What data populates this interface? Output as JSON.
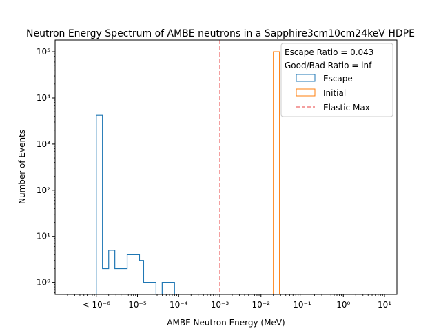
{
  "chart_data": {
    "type": "histogram",
    "title": "Neutron Energy Spectrum of AMBE neutrons in a Sapphire3cm10cm24keV HDPE",
    "xlabel": "AMBE Neutron Energy (MeV)",
    "ylabel": "Number of Events",
    "xscale": "log",
    "yscale": "log",
    "xlim": [
      1e-07,
      20
    ],
    "ylim": [
      0.55,
      180000
    ],
    "x_ticks": [
      {
        "value": 1e-06,
        "label": "< 10⁻⁶"
      },
      {
        "value": 1e-05,
        "label": "10⁻⁵"
      },
      {
        "value": 0.0001,
        "label": "10⁻⁴"
      },
      {
        "value": 0.001,
        "label": "10⁻³"
      },
      {
        "value": 0.01,
        "label": "10⁻²"
      },
      {
        "value": 0.1,
        "label": "10⁻¹"
      },
      {
        "value": 1,
        "label": "10⁰"
      },
      {
        "value": 10,
        "label": "10¹"
      }
    ],
    "y_ticks": [
      {
        "value": 1,
        "label": "10⁰"
      },
      {
        "value": 10,
        "label": "10¹"
      },
      {
        "value": 100,
        "label": "10²"
      },
      {
        "value": 1000,
        "label": "10³"
      },
      {
        "value": 10000,
        "label": "10⁴"
      },
      {
        "value": 100000,
        "label": "10⁵"
      }
    ],
    "series": [
      {
        "name": "Escape",
        "color": "#1f77b4",
        "style": "step",
        "bins": [
          {
            "lo": 1e-06,
            "hi": 1.41e-06,
            "count": 4200
          },
          {
            "lo": 1.41e-06,
            "hi": 2e-06,
            "count": 2
          },
          {
            "lo": 2e-06,
            "hi": 2.82e-06,
            "count": 5
          },
          {
            "lo": 2.82e-06,
            "hi": 3.98e-06,
            "count": 2
          },
          {
            "lo": 3.98e-06,
            "hi": 5.62e-06,
            "count": 2
          },
          {
            "lo": 5.62e-06,
            "hi": 7.94e-06,
            "count": 4
          },
          {
            "lo": 7.94e-06,
            "hi": 1.12e-05,
            "count": 4
          },
          {
            "lo": 1.12e-05,
            "hi": 1.41e-05,
            "count": 3
          },
          {
            "lo": 1.41e-05,
            "hi": 2e-05,
            "count": 1
          },
          {
            "lo": 2e-05,
            "hi": 2.82e-05,
            "count": 1
          },
          {
            "lo": 2.82e-05,
            "hi": 3.98e-05,
            "count": 0
          },
          {
            "lo": 3.98e-05,
            "hi": 5.62e-05,
            "count": 1
          },
          {
            "lo": 5.62e-05,
            "hi": 7.94e-05,
            "count": 1
          }
        ]
      },
      {
        "name": "Initial",
        "color": "#ff7f0e",
        "style": "step",
        "bins": [
          {
            "lo": 0.02,
            "hi": 0.0224,
            "count": 100000
          },
          {
            "lo": 0.0224,
            "hi": 0.0282,
            "count": 100000
          }
        ]
      }
    ],
    "vlines": [
      {
        "name": "Elastic Max",
        "x": 0.001,
        "color": "#f08080",
        "style": "dashed"
      }
    ],
    "legend": {
      "location": "upper right",
      "header": [
        "Escape Ratio = 0.043",
        "Good/Bad Ratio = inf"
      ],
      "entries": [
        "Escape",
        "Initial",
        "Elastic Max"
      ]
    }
  }
}
